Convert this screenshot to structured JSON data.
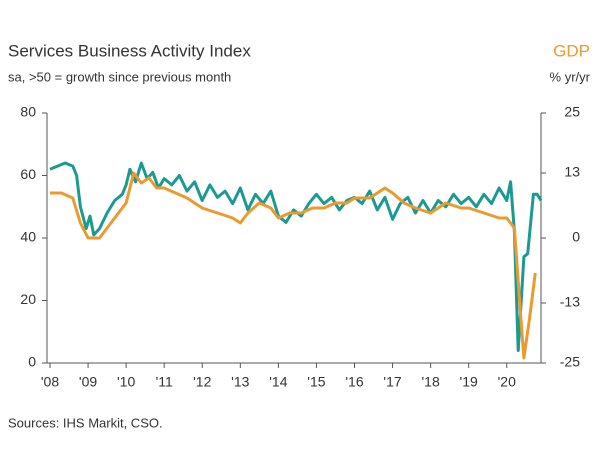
{
  "chart_data": {
    "type": "line",
    "title": "Services Business Activity Index",
    "subtitle": "sa, >50 = growth since previous month",
    "y2_label": "% yr/yr",
    "source": "Sources: IHS Markit, CSO.",
    "xlim": [
      2008,
      2020.9
    ],
    "xticks": [
      {
        "value": 2008,
        "label": "'08"
      },
      {
        "value": 2009,
        "label": "'09"
      },
      {
        "value": 2010,
        "label": "'10"
      },
      {
        "value": 2011,
        "label": "'11"
      },
      {
        "value": 2012,
        "label": "'12"
      },
      {
        "value": 2013,
        "label": "'13"
      },
      {
        "value": 2014,
        "label": "'14"
      },
      {
        "value": 2015,
        "label": "'15"
      },
      {
        "value": 2016,
        "label": "'16"
      },
      {
        "value": 2017,
        "label": "'17"
      },
      {
        "value": 2018,
        "label": "'18"
      },
      {
        "value": 2019,
        "label": "'19"
      },
      {
        "value": 2020,
        "label": "'20"
      }
    ],
    "ylim": [
      0,
      80
    ],
    "yticks": [
      0,
      20,
      40,
      60,
      80
    ],
    "y2lim": [
      -25,
      25
    ],
    "y2ticks": [
      -25,
      -13,
      0,
      13,
      25
    ],
    "series": [
      {
        "color": "#1a9a92",
        "x": [
          2008.0,
          2008.2,
          2008.4,
          2008.6,
          2008.7,
          2008.8,
          2008.95,
          2009.05,
          2009.15,
          2009.3,
          2009.5,
          2009.7,
          2009.9,
          2010.0,
          2010.1,
          2010.25,
          2010.4,
          2010.55,
          2010.7,
          2010.85,
          2011.0,
          2011.2,
          2011.4,
          2011.6,
          2011.8,
          2012.0,
          2012.2,
          2012.4,
          2012.6,
          2012.8,
          2013.0,
          2013.2,
          2013.4,
          2013.6,
          2013.8,
          2014.0,
          2014.2,
          2014.4,
          2014.6,
          2014.8,
          2015.0,
          2015.2,
          2015.4,
          2015.6,
          2015.8,
          2016.0,
          2016.2,
          2016.4,
          2016.6,
          2016.8,
          2017.0,
          2017.2,
          2017.4,
          2017.6,
          2017.8,
          2018.0,
          2018.2,
          2018.4,
          2018.6,
          2018.8,
          2019.0,
          2019.2,
          2019.4,
          2019.6,
          2019.8,
          2020.0,
          2020.1,
          2020.2,
          2020.3,
          2020.45,
          2020.55,
          2020.7,
          2020.8,
          2020.9
        ],
        "values": [
          62,
          63,
          64,
          63,
          60,
          50,
          43,
          47,
          41,
          43,
          48,
          52,
          54,
          57,
          62,
          58,
          64,
          59,
          61,
          56,
          59,
          57,
          60,
          55,
          58,
          52,
          57,
          53,
          55,
          51,
          56,
          49,
          54,
          51,
          55,
          47,
          45,
          49,
          47,
          51,
          54,
          51,
          53,
          49,
          52,
          53,
          51,
          55,
          49,
          53,
          46,
          51,
          53,
          48,
          52,
          48,
          52,
          50,
          54,
          51,
          53,
          50,
          54,
          51,
          56,
          52,
          58,
          42,
          4,
          34,
          35,
          54,
          54,
          52
        ]
      },
      {
        "name": "GDP",
        "color": "#eb9a2e",
        "axis": "y2",
        "x": [
          2008.0,
          2008.3,
          2008.6,
          2008.8,
          2009.0,
          2009.3,
          2009.6,
          2009.9,
          2010.0,
          2010.2,
          2010.4,
          2010.6,
          2010.8,
          2011.0,
          2011.3,
          2011.6,
          2012.0,
          2012.4,
          2012.8,
          2013.0,
          2013.2,
          2013.5,
          2013.8,
          2014.0,
          2014.3,
          2014.6,
          2014.9,
          2015.2,
          2015.5,
          2015.8,
          2016.0,
          2016.4,
          2016.8,
          2017.0,
          2017.3,
          2017.6,
          2018.0,
          2018.4,
          2018.8,
          2019.0,
          2019.4,
          2019.8,
          2020.0,
          2020.2,
          2020.35,
          2020.45,
          2020.6,
          2020.75
        ],
        "values": [
          9,
          9,
          8,
          3,
          0,
          0,
          3,
          6,
          7,
          13,
          11,
          12,
          10,
          10,
          9,
          8,
          6,
          5,
          4,
          3,
          5,
          7,
          6,
          4,
          5,
          5,
          6,
          6,
          7,
          7,
          8,
          8,
          10,
          9,
          7,
          6,
          5,
          7,
          6,
          6,
          5,
          4,
          4,
          2,
          -14,
          -24,
          -16,
          -7
        ]
      }
    ]
  }
}
